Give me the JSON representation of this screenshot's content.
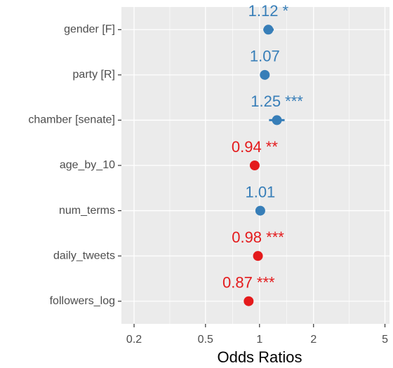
{
  "chart_data": {
    "type": "forest",
    "xlabel": "Odds Ratios",
    "categories": [
      "gender [F]",
      "party [R]",
      "chamber [senate]",
      "age_by_10",
      "num_terms",
      "daily_tweets",
      "followers_log"
    ],
    "values": [
      1.12,
      1.07,
      1.25,
      0.94,
      1.01,
      0.98,
      0.87
    ],
    "value_labels": [
      "1.12 *",
      "1.07",
      "1.25 ***",
      "0.94 **",
      "1.01",
      "0.98 ***",
      "0.87 ***"
    ],
    "ci_low": [
      1.05,
      1.03,
      1.13,
      0.91,
      0.99,
      0.97,
      0.84
    ],
    "ci_high": [
      1.2,
      1.11,
      1.38,
      0.97,
      1.03,
      0.99,
      0.9
    ],
    "colors": [
      "#377eb8",
      "#377eb8",
      "#377eb8",
      "#e41a1c",
      "#377eb8",
      "#e41a1c",
      "#e41a1c"
    ],
    "xlim": [
      0.17,
      5.3
    ],
    "xticks": [
      0.2,
      0.5,
      1,
      2,
      5
    ],
    "log_x": true,
    "grid": true
  }
}
